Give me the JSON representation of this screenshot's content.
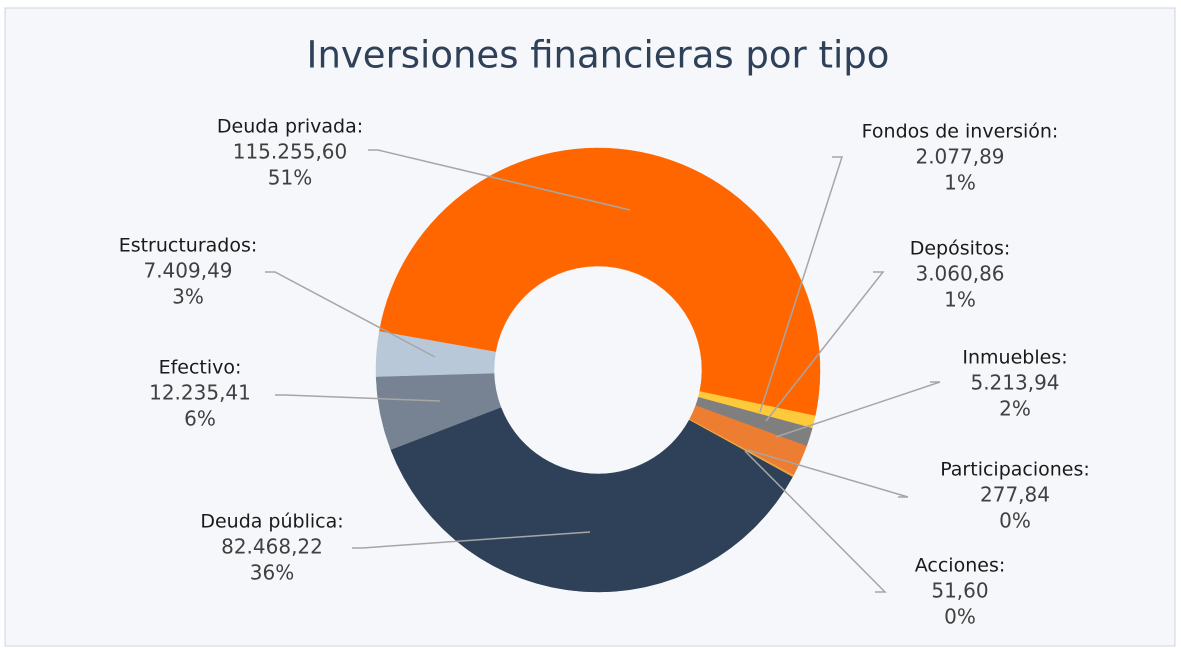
{
  "chart_data": {
    "type": "donut",
    "title": "Inversiones financieras por tipo",
    "categories": [
      "Deuda privada:",
      "Fondos de inversión:",
      "Depósitos:",
      "Inmuebles:",
      "Participaciones:",
      "Acciones:",
      "Deuda pública:",
      "Efectivo:",
      "Estructurados:"
    ],
    "values": [
      115255.6,
      2077.89,
      3060.86,
      5213.94,
      277.84,
      51.6,
      82468.22,
      12235.41,
      7409.49
    ],
    "value_labels": [
      "115.255,60",
      "2.077,89",
      "3.060,86",
      "5.213,94",
      "277,84",
      "51,60",
      "82.468,22",
      "12.235,41",
      "7.409,49"
    ],
    "percentages": [
      51,
      1,
      1,
      2,
      0,
      0,
      36,
      6,
      3
    ],
    "percentage_labels": [
      "51%",
      "1%",
      "1%",
      "2%",
      "0%",
      "0%",
      "36%",
      "6%",
      "3%"
    ],
    "colors": [
      "#ff6600",
      "#ffc93c",
      "#7f7f7f",
      "#ed7d31",
      "#f0a050",
      "#ffd700",
      "#2f4159",
      "#778393",
      "#b9c8d9"
    ]
  }
}
